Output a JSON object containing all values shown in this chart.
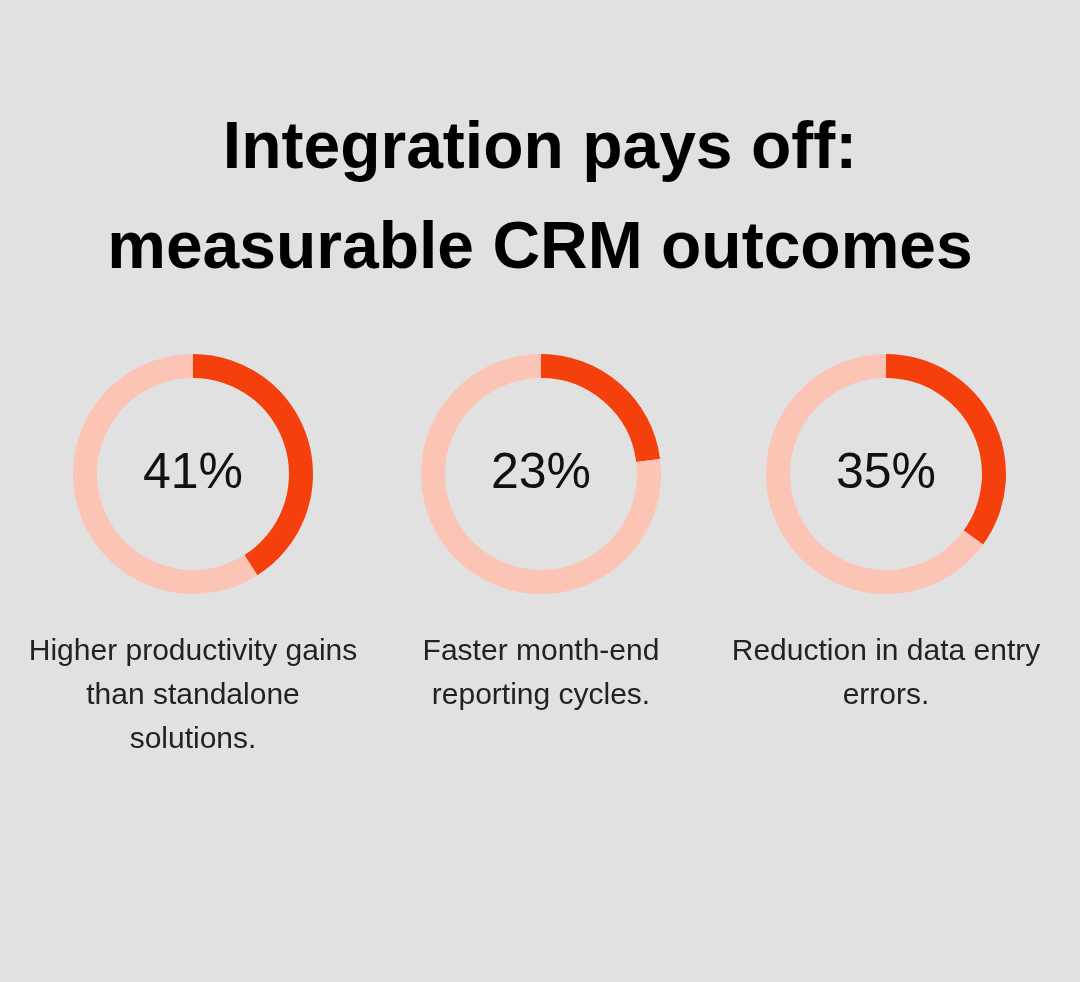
{
  "chart_data": [
    {
      "type": "other",
      "title": "Integration pays off: measurable CRM outcomes"
    },
    {
      "type": "donut",
      "categories": [
        null,
        null
      ],
      "values": [
        41,
        59
      ],
      "colors": [
        "#f53f0c",
        "#fbc4b4"
      ],
      "value_labels": [
        "41%",
        null
      ],
      "annotations": [
        "Higher productivity gains than standalone solutions."
      ]
    },
    {
      "type": "donut",
      "categories": [
        null,
        null
      ],
      "values": [
        23,
        77
      ],
      "colors": [
        "#f53f0c",
        "#fbc4b4"
      ],
      "value_labels": [
        "23%",
        null
      ],
      "annotations": [
        "Faster month-end reporting cycles."
      ]
    },
    {
      "type": "donut",
      "categories": [
        null,
        null
      ],
      "values": [
        35,
        65
      ],
      "colors": [
        "#f53f0c",
        "#fbc4b4"
      ],
      "value_labels": [
        "35%",
        null
      ],
      "annotations": [
        "Reduction in data entry errors."
      ]
    }
  ]
}
